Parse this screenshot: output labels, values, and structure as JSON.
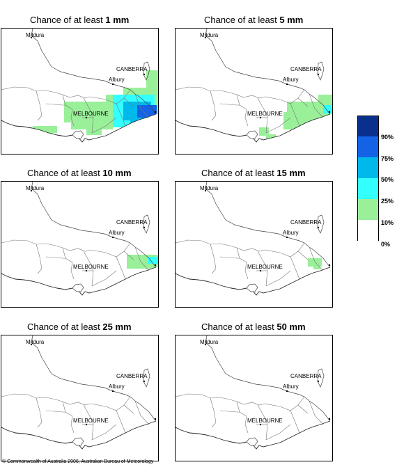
{
  "panels": [
    {
      "prefix": "Chance of at least ",
      "amount": "1 mm",
      "level": 0
    },
    {
      "prefix": "Chance of at least ",
      "amount": "5 mm",
      "level": 1
    },
    {
      "prefix": "Chance of at least ",
      "amount": "10 mm",
      "level": 2
    },
    {
      "prefix": "Chance of at least ",
      "amount": "15 mm",
      "level": 3
    },
    {
      "prefix": "Chance of at least ",
      "amount": "25 mm",
      "level": 4
    },
    {
      "prefix": "Chance of at least ",
      "amount": "50 mm",
      "level": 5
    }
  ],
  "places": {
    "mildura": "Mildura",
    "canberra": "CANBERRA",
    "albury": "Albury",
    "melbourne": "MELBOURNE"
  },
  "legend": {
    "ticks": [
      "90%",
      "75%",
      "50%",
      "25%",
      "10%",
      "0%"
    ],
    "colors": [
      "#0a2f8c",
      "#1463e6",
      "#00b8ea",
      "#33ffff",
      "#99f099",
      "#ffffff"
    ]
  },
  "copyright": "© Commonwealth of Australia 2006, Australian Bureau of Meteorology"
}
